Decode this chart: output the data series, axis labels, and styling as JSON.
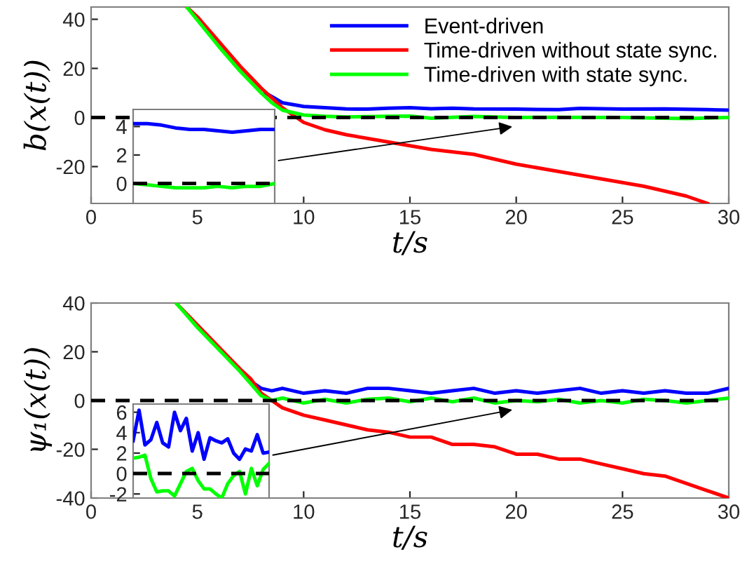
{
  "chart_data": [
    {
      "type": "line",
      "xlabel": "t/s",
      "ylabel": "b(x(t))",
      "xlim": [
        0,
        30
      ],
      "ylim": [
        -35,
        45
      ],
      "xticks": [
        0,
        5,
        10,
        15,
        20,
        25,
        30
      ],
      "yticks": [
        -20,
        0,
        20,
        40
      ],
      "grid": false,
      "legend": "top right",
      "line_style": "solid",
      "marker": "none",
      "ref_lines": [
        {
          "axis": "y",
          "value": 0,
          "color": "#000000",
          "line_style": "dashed"
        }
      ],
      "series": [
        {
          "name": "Event-driven",
          "color": "#0000ff",
          "x": [
            8.2,
            9,
            10,
            11,
            12,
            13,
            14,
            15,
            16,
            17,
            18,
            20,
            22,
            23,
            25,
            27,
            29,
            30
          ],
          "values": [
            10,
            6,
            4.5,
            4,
            3.5,
            3.4,
            3.8,
            4,
            3.6,
            3.8,
            3.5,
            3.4,
            3.2,
            3.7,
            3.4,
            3.5,
            3.2,
            3
          ]
        },
        {
          "name": "Time-driven without state sync.",
          "color": "#ff0000",
          "x": [
            4.5,
            5,
            6,
            7,
            8,
            9,
            9.5,
            10,
            11,
            12,
            14,
            16,
            18,
            20,
            22,
            24,
            26,
            28,
            29
          ],
          "values": [
            45,
            41,
            31,
            21,
            12,
            4,
            1,
            -2,
            -5,
            -7,
            -10,
            -13,
            -15,
            -19,
            -22,
            -25,
            -28,
            -32,
            -35
          ]
        },
        {
          "name": "Time-driven with state sync.",
          "color": "#00ff00",
          "x": [
            4.5,
            6,
            7,
            8,
            8.5,
            9,
            10,
            11,
            12,
            14,
            15,
            16,
            18,
            20,
            22,
            25,
            28,
            30
          ],
          "values": [
            45,
            29,
            19,
            10,
            6,
            3,
            1,
            0.5,
            0.2,
            0.5,
            0.6,
            -0.3,
            0.4,
            0,
            0.1,
            0,
            -0.4,
            0
          ]
        }
      ]
    },
    {
      "type": "line",
      "categories": [
        null,
        null,
        null,
        null,
        null,
        null,
        null,
        null,
        null,
        null,
        null
      ],
      "ylim": [
        -1.4,
        5.2
      ],
      "yticks": [
        0,
        2,
        4
      ],
      "tick_labels": "y",
      "grid": false,
      "ref_lines": [
        {
          "axis": "y",
          "value": 0,
          "color": "#000000",
          "line_style": "dashed"
        }
      ],
      "series": [
        {
          "color": "#0000ff",
          "values": [
            4.2,
            4.2,
            4.1,
            3.9,
            3.8,
            3.8,
            3.7,
            3.6,
            3.7,
            3.8,
            3.8
          ]
        },
        {
          "color": "#00ff00",
          "values": [
            0,
            -0.1,
            -0.2,
            -0.3,
            -0.3,
            -0.3,
            -0.2,
            -0.3,
            -0.2,
            -0.2,
            0
          ]
        }
      ]
    },
    {
      "type": "line",
      "xlabel": "t/s",
      "ylabel": "ψ₁(x(t))",
      "xlim": [
        0,
        30
      ],
      "ylim": [
        -40,
        40
      ],
      "xticks": [
        0,
        5,
        10,
        15,
        20,
        25,
        30
      ],
      "yticks": [
        -40,
        -20,
        0,
        20,
        40
      ],
      "grid": false,
      "line_style": "solid",
      "marker": "none",
      "ref_lines": [
        {
          "axis": "y",
          "value": 0,
          "color": "#000000",
          "line_style": "dashed"
        }
      ],
      "series": [
        {
          "color": "#0000ff",
          "x": [
            7.5,
            8,
            8.5,
            9,
            10,
            11,
            12,
            13,
            14,
            15,
            16,
            17,
            18,
            19,
            20,
            21,
            22,
            23,
            24,
            25,
            26,
            27,
            28,
            29,
            30
          ],
          "values": [
            8,
            5,
            4,
            5,
            3,
            4,
            3,
            5,
            5,
            4,
            3,
            4,
            5,
            3,
            4,
            3,
            4,
            5,
            3,
            4,
            3,
            4,
            3,
            3,
            5
          ]
        },
        {
          "color": "#ff0000",
          "x": [
            4,
            5,
            6,
            7,
            7.5,
            8,
            8.5,
            9,
            10,
            11,
            12,
            13,
            14,
            15,
            16,
            17,
            18,
            19,
            20,
            21,
            22,
            23,
            24,
            25,
            26,
            27,
            28,
            29,
            30
          ],
          "values": [
            40,
            31,
            22,
            13,
            9,
            3,
            0,
            -3,
            -6,
            -8,
            -10,
            -12,
            -13,
            -15,
            -15,
            -18,
            -18,
            -19,
            -22,
            -22,
            -24,
            -24,
            -26,
            -28,
            -30,
            -31,
            -34,
            -37,
            -40
          ]
        },
        {
          "color": "#00ff00",
          "x": [
            4,
            5,
            6,
            7,
            7.5,
            8,
            8.5,
            9,
            10,
            11,
            12,
            13,
            14,
            15,
            16,
            17,
            18,
            19,
            20,
            21,
            22,
            23,
            24,
            25,
            26,
            27,
            28,
            29,
            30
          ],
          "values": [
            40,
            30,
            21,
            12,
            7,
            2,
            0,
            1,
            -1,
            0.5,
            -1,
            0.5,
            1,
            -0.5,
            1,
            -0.5,
            1,
            -1,
            0,
            -0.5,
            0.5,
            -1,
            0,
            -1,
            0.5,
            0,
            -1,
            0,
            1
          ]
        }
      ]
    },
    {
      "type": "line",
      "categories": [
        null,
        null,
        null,
        null,
        null,
        null,
        null,
        null,
        null,
        null,
        null,
        null,
        null,
        null,
        null,
        null,
        null,
        null,
        null,
        null,
        null,
        null,
        null,
        null
      ],
      "ylim": [
        -2.4,
        6.8
      ],
      "yticks": [
        -2,
        0,
        2,
        4,
        6
      ],
      "tick_labels": "y",
      "grid": false,
      "ref_lines": [
        {
          "axis": "y",
          "value": 0,
          "color": "#000000",
          "line_style": "dashed"
        }
      ],
      "series": [
        {
          "color": "#0000ff",
          "values": [
            3.2,
            6.2,
            2.8,
            3.3,
            5.0,
            3.0,
            2.6,
            6.0,
            4.2,
            5.4,
            2.2,
            4.0,
            1.4,
            3.5,
            3.2,
            3.0,
            3.4,
            2.0,
            1.4,
            2.4,
            2.2,
            3.8,
            2.0,
            2.1
          ]
        },
        {
          "color": "#00ff00",
          "values": [
            1.5,
            1.6,
            1.8,
            -0.5,
            -1.8,
            -1.7,
            -1.7,
            -2.2,
            -1.0,
            0.2,
            0.5,
            -0.7,
            -1.5,
            -1.5,
            -2.0,
            -2.4,
            -1.0,
            -0.2,
            0.2,
            -2.0,
            0.5,
            -1.2,
            0.4,
            1.0
          ]
        }
      ]
    }
  ]
}
